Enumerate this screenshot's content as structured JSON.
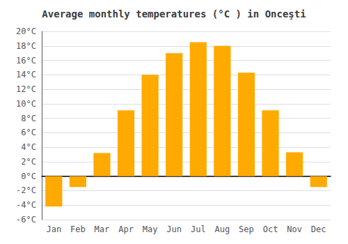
{
  "chart_data": {
    "type": "bar",
    "title": "Average monthly temperatures (°C ) in Onceşti",
    "categories": [
      "Jan",
      "Feb",
      "Mar",
      "Apr",
      "May",
      "Jun",
      "Jul",
      "Aug",
      "Sep",
      "Oct",
      "Nov",
      "Dec"
    ],
    "values": [
      -4.2,
      -1.5,
      3.2,
      9.1,
      14.0,
      17.0,
      18.5,
      18.0,
      14.3,
      9.1,
      3.3,
      -1.5
    ],
    "color": "#FFAA00",
    "ylim": [
      -6,
      20
    ],
    "yticks": [
      {
        "value": -6,
        "label": "-6°C"
      },
      {
        "value": -4,
        "label": "-4°C"
      },
      {
        "value": -2,
        "label": "-2°C"
      },
      {
        "value": 0,
        "label": "0°C"
      },
      {
        "value": 2,
        "label": "2°C"
      },
      {
        "value": 4,
        "label": "4°C"
      },
      {
        "value": 6,
        "label": "6°C"
      },
      {
        "value": 8,
        "label": "8°C"
      },
      {
        "value": 10,
        "label": "10°C"
      },
      {
        "value": 12,
        "label": "12°C"
      },
      {
        "value": 14,
        "label": "14°C"
      },
      {
        "value": 16,
        "label": "16°C"
      },
      {
        "value": 18,
        "label": "18°C"
      },
      {
        "value": 20,
        "label": "20°C"
      }
    ],
    "grid": true
  }
}
